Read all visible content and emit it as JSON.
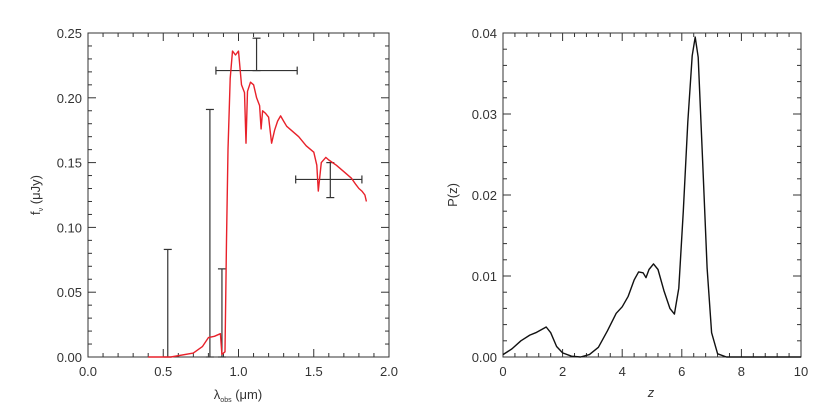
{
  "chart_data": [
    {
      "type": "line",
      "xlabel": "λ",
      "xlabel_sub": "obs",
      "xlabel_unit": " (μm)",
      "ylabel": "f",
      "ylabel_sub": "ν",
      "ylabel_unit": " (μJy)",
      "xlim": [
        0.0,
        2.0
      ],
      "ylim": [
        0.0,
        0.25
      ],
      "xticks": [
        0.0,
        0.5,
        1.0,
        1.5,
        2.0
      ],
      "yticks": [
        0.0,
        0.05,
        0.1,
        0.15,
        0.2,
        0.25
      ],
      "xtick_labels": [
        "0.0",
        "0.5",
        "1.0",
        "1.5",
        "2.0"
      ],
      "ytick_labels": [
        "0.00",
        "0.05",
        "0.10",
        "0.15",
        "0.20",
        "0.25"
      ],
      "series": [
        {
          "color": "#e8212a",
          "x": [
            0.4,
            0.55,
            0.7,
            0.76,
            0.8,
            0.84,
            0.88,
            0.89,
            0.91,
            0.92,
            0.93,
            0.945,
            0.96,
            0.98,
            1.0,
            1.02,
            1.04,
            1.05,
            1.06,
            1.08,
            1.1,
            1.12,
            1.14,
            1.15,
            1.16,
            1.18,
            1.2,
            1.22,
            1.24,
            1.26,
            1.28,
            1.3,
            1.32,
            1.35,
            1.4,
            1.45,
            1.5,
            1.52,
            1.53,
            1.55,
            1.58,
            1.6,
            1.65,
            1.7,
            1.75,
            1.78,
            1.8,
            1.82,
            1.84,
            1.85
          ],
          "y": [
            0.0,
            0.0,
            0.003,
            0.008,
            0.015,
            0.016,
            0.018,
            0.002,
            0.004,
            0.09,
            0.16,
            0.215,
            0.236,
            0.233,
            0.236,
            0.21,
            0.204,
            0.165,
            0.205,
            0.212,
            0.21,
            0.2,
            0.194,
            0.176,
            0.19,
            0.188,
            0.185,
            0.165,
            0.175,
            0.182,
            0.186,
            0.182,
            0.178,
            0.175,
            0.17,
            0.163,
            0.158,
            0.148,
            0.128,
            0.15,
            0.154,
            0.152,
            0.148,
            0.143,
            0.138,
            0.133,
            0.13,
            0.128,
            0.125,
            0.12
          ]
        }
      ],
      "error_bars": [
        {
          "x": 0.53,
          "y": 0.0,
          "yerr": [
            0.0,
            0.083
          ]
        },
        {
          "x": 0.81,
          "y": 0.0,
          "yerr": [
            0.0,
            0.191
          ]
        },
        {
          "x": 0.89,
          "y": 0.0,
          "yerr": [
            0.0,
            0.068
          ]
        },
        {
          "x": 1.12,
          "y": 0.221,
          "yerr": [
            0.221,
            0.246
          ],
          "xerr": [
            0.85,
            1.39
          ]
        },
        {
          "x": 1.61,
          "y": 0.137,
          "yerr": [
            0.123,
            0.15
          ],
          "xerr": [
            1.38,
            1.82
          ]
        }
      ],
      "error_bar_color": "#333333"
    },
    {
      "type": "line",
      "xlabel": "z",
      "ylabel": "P(z)",
      "xlim": [
        0,
        10
      ],
      "ylim": [
        0.0,
        0.04
      ],
      "xticks": [
        0,
        2,
        4,
        6,
        8,
        10
      ],
      "yticks": [
        0.0,
        0.01,
        0.02,
        0.03,
        0.04
      ],
      "xtick_labels": [
        "0",
        "2",
        "4",
        "6",
        "8",
        "10"
      ],
      "ytick_labels": [
        "0.00",
        "0.01",
        "0.02",
        "0.03",
        "0.04"
      ],
      "series": [
        {
          "color": "#111111",
          "x": [
            0.0,
            0.3,
            0.6,
            0.9,
            1.1,
            1.3,
            1.45,
            1.6,
            1.8,
            2.0,
            2.3,
            2.6,
            2.9,
            3.2,
            3.5,
            3.8,
            4.0,
            4.2,
            4.4,
            4.55,
            4.7,
            4.8,
            4.9,
            5.05,
            5.2,
            5.4,
            5.6,
            5.75,
            5.9,
            6.05,
            6.2,
            6.35,
            6.45,
            6.55,
            6.7,
            6.85,
            7.0,
            7.2,
            7.5,
            8.0,
            9.0,
            10.0
          ],
          "y": [
            0.0003,
            0.001,
            0.002,
            0.0027,
            0.003,
            0.0034,
            0.0037,
            0.003,
            0.0013,
            0.0005,
            0.0001,
            0.0,
            0.0003,
            0.0012,
            0.0032,
            0.0054,
            0.0062,
            0.0075,
            0.0095,
            0.0105,
            0.0104,
            0.0098,
            0.0108,
            0.0115,
            0.0108,
            0.0082,
            0.006,
            0.0053,
            0.0085,
            0.018,
            0.029,
            0.0372,
            0.0395,
            0.037,
            0.024,
            0.011,
            0.003,
            0.0004,
            0.0,
            0.0,
            0.0,
            0.0
          ]
        }
      ]
    }
  ]
}
